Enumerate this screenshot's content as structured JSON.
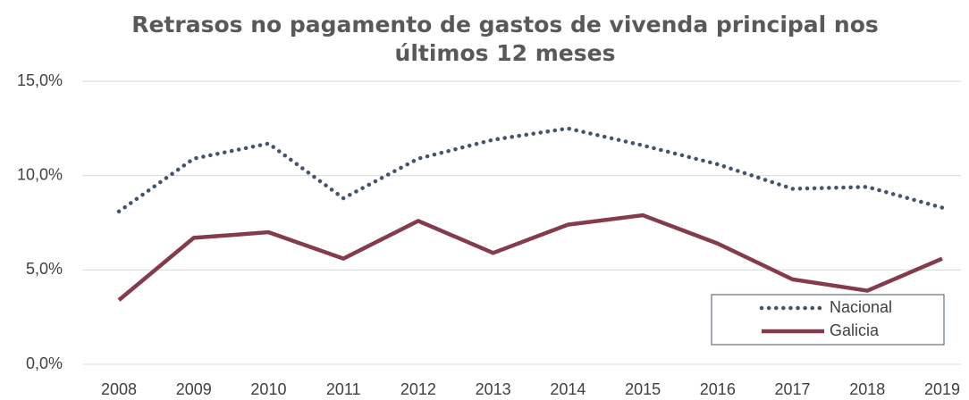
{
  "chart_data": {
    "type": "line",
    "title": "Retrasos no pagamento de gastos de vivenda principal nos últimos 12 meses",
    "categories": [
      "2008",
      "2009",
      "2010",
      "2011",
      "2012",
      "2013",
      "2014",
      "2015",
      "2016",
      "2017",
      "2018",
      "2019"
    ],
    "series": [
      {
        "name": "Nacional",
        "color": "#44546a",
        "dash": "dotted",
        "values": [
          8.1,
          10.9,
          11.7,
          8.8,
          10.9,
          11.9,
          12.5,
          11.6,
          10.6,
          9.3,
          9.4,
          8.3
        ]
      },
      {
        "name": "Galicia",
        "color": "#843c4c",
        "dash": "solid",
        "values": [
          3.4,
          6.7,
          7.0,
          5.6,
          7.6,
          5.9,
          7.4,
          7.9,
          6.4,
          4.5,
          3.9,
          5.6
        ]
      }
    ],
    "ylim": [
      0,
      15
    ],
    "yticks": [
      {
        "value": 0,
        "label": "0,0%"
      },
      {
        "value": 5,
        "label": "5,0%"
      },
      {
        "value": 10,
        "label": "10,0%"
      },
      {
        "value": 15,
        "label": "15,0%"
      }
    ],
    "grid": true,
    "legend": "lower-right"
  }
}
